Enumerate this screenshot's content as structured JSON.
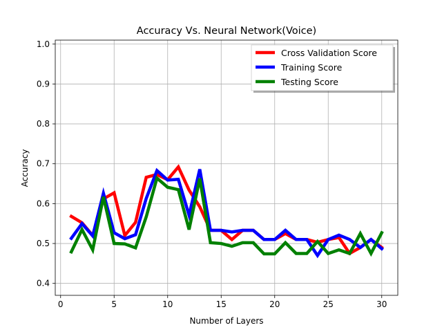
{
  "chart_data": {
    "type": "line",
    "title": "Accuracy Vs. Neural Network(Voice)",
    "xlabel": "Number of Layers",
    "ylabel": "Accuracy",
    "xlim": [
      -0.5,
      31.5
    ],
    "ylim": [
      0.37,
      1.01
    ],
    "xticks": [
      0,
      5,
      10,
      15,
      20,
      25,
      30
    ],
    "yticks": [
      0.4,
      0.5,
      0.6,
      0.7,
      0.8,
      0.9,
      1.0
    ],
    "xtick_labels": [
      "0",
      "5",
      "10",
      "15",
      "20",
      "25",
      "30"
    ],
    "ytick_labels": [
      "0.4",
      "0.5",
      "0.6",
      "0.7",
      "0.8",
      "0.9",
      "1.0"
    ],
    "grid": true,
    "legend_position": "top-right",
    "x": [
      1,
      2,
      3,
      4,
      5,
      6,
      7,
      8,
      9,
      10,
      11,
      12,
      13,
      14,
      15,
      16,
      17,
      18,
      19,
      20,
      21,
      22,
      23,
      24,
      25,
      26,
      27,
      28,
      29,
      30
    ],
    "series": [
      {
        "name": "Cross Validation Score",
        "color": "#ff0000",
        "values": [
          0.568,
          0.552,
          0.52,
          0.612,
          0.627,
          0.52,
          0.553,
          0.666,
          0.673,
          0.66,
          0.692,
          0.634,
          0.592,
          0.533,
          0.533,
          0.51,
          0.533,
          0.533,
          0.51,
          0.51,
          0.525,
          0.51,
          0.51,
          0.503,
          0.51,
          0.515,
          0.475,
          0.49,
          0.51,
          0.49
        ]
      },
      {
        "name": "Training Score",
        "color": "#0000ff",
        "values": [
          0.513,
          0.55,
          0.519,
          0.626,
          0.527,
          0.512,
          0.522,
          0.613,
          0.683,
          0.659,
          0.661,
          0.571,
          0.686,
          0.533,
          0.533,
          0.529,
          0.533,
          0.533,
          0.51,
          0.51,
          0.533,
          0.51,
          0.51,
          0.47,
          0.51,
          0.521,
          0.51,
          0.49,
          0.51,
          0.487
        ]
      },
      {
        "name": "Testing Score",
        "color": "#008000",
        "values": [
          0.479,
          0.535,
          0.484,
          0.617,
          0.5,
          0.499,
          0.489,
          0.567,
          0.664,
          0.641,
          0.635,
          0.535,
          0.663,
          0.502,
          0.5,
          0.493,
          0.502,
          0.502,
          0.474,
          0.474,
          0.502,
          0.475,
          0.475,
          0.505,
          0.475,
          0.484,
          0.475,
          0.525,
          0.475,
          0.527
        ]
      }
    ]
  }
}
